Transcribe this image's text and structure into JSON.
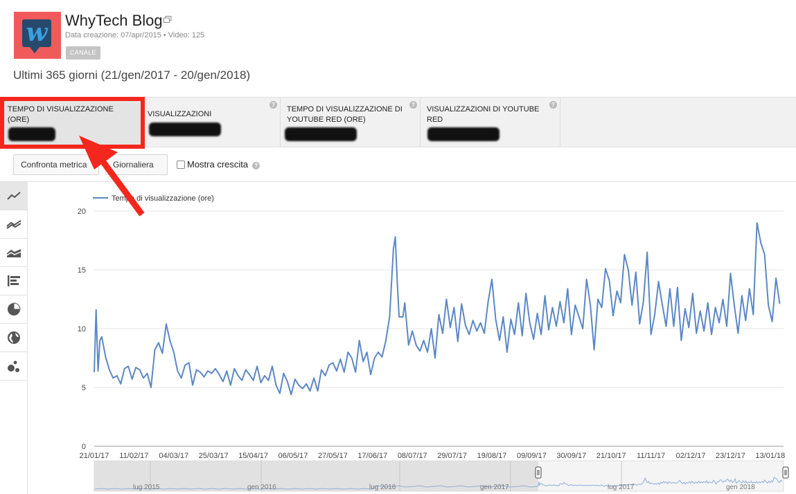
{
  "header": {
    "channel_name": "WhyTech Blog",
    "meta": "Data creazione: 07/apr/2015  •  Video: 125",
    "channel_button": "CANALE",
    "date_range": "Ultimi 365 giorni (21/gen/2017 - 20/gen/2018)"
  },
  "metrics": [
    {
      "label": "TEMPO DI VISUALIZZAZIONE (ORE)",
      "selected": true
    },
    {
      "label": "VISUALIZZAZIONI",
      "selected": false
    },
    {
      "label": "TEMPO DI VISUALIZZAZIONE DI YOUTUBE RED (ORE)",
      "selected": false
    },
    {
      "label": "VISUALIZZAZIONI DI YOUTUBE RED",
      "selected": false
    }
  ],
  "controls": {
    "compare_label": "Confronta metrica",
    "granularity_label": "Giornaliera",
    "growth_label": "Mostra crescita"
  },
  "sidebar_icons": [
    "line-chart-icon",
    "multi-line-chart-icon",
    "stacked-area-chart-icon",
    "bar-chart-icon",
    "pie-chart-icon",
    "globe-map-icon",
    "bubble-chart-icon"
  ],
  "colors": {
    "series": "#5b87c5",
    "highlight": "#f4271c"
  },
  "chart_data": {
    "type": "line",
    "title": "",
    "xlabel": "",
    "ylabel": "",
    "ylim": [
      0,
      20
    ],
    "yticks": [
      "0",
      "5",
      "10",
      "15",
      "20"
    ],
    "x_ticks": [
      "21/01/17",
      "11/02/17",
      "04/03/17",
      "25/03/17",
      "15/04/17",
      "06/05/17",
      "27/05/17",
      "17/06/17",
      "08/07/17",
      "29/07/17",
      "19/08/17",
      "09/09/17",
      "30/09/17",
      "21/10/17",
      "11/11/17",
      "02/12/17",
      "23/12/17",
      "13/01/18"
    ],
    "legend_position": "top-left",
    "series": [
      {
        "name": "Tempo di visualizzazione (ore)",
        "x_start": "2017-01-21",
        "x_end": "2018-01-20",
        "keypoints": [
          [
            0,
            6.3
          ],
          [
            1,
            11.6
          ],
          [
            2,
            6.4
          ],
          [
            3,
            9.0
          ],
          [
            4,
            9.3
          ],
          [
            6,
            7.6
          ],
          [
            8,
            6.5
          ],
          [
            10,
            5.8
          ],
          [
            12,
            6.0
          ],
          [
            14,
            5.3
          ],
          [
            16,
            6.6
          ],
          [
            18,
            6.8
          ],
          [
            20,
            5.7
          ],
          [
            22,
            6.7
          ],
          [
            24,
            6.5
          ],
          [
            26,
            5.8
          ],
          [
            28,
            6.2
          ],
          [
            30,
            5.0
          ],
          [
            32,
            8.2
          ],
          [
            34,
            8.8
          ],
          [
            36,
            7.9
          ],
          [
            38,
            10.4
          ],
          [
            40,
            9.0
          ],
          [
            42,
            8.0
          ],
          [
            44,
            6.4
          ],
          [
            46,
            5.8
          ],
          [
            48,
            6.9
          ],
          [
            50,
            7.1
          ],
          [
            52,
            5.2
          ],
          [
            54,
            6.5
          ],
          [
            56,
            6.3
          ],
          [
            58,
            5.9
          ],
          [
            60,
            6.4
          ],
          [
            62,
            6.2
          ],
          [
            64,
            6.6
          ],
          [
            66,
            6.1
          ],
          [
            68,
            5.5
          ],
          [
            70,
            6.4
          ],
          [
            72,
            5.2
          ],
          [
            74,
            6.6
          ],
          [
            76,
            6.0
          ],
          [
            78,
            5.6
          ],
          [
            80,
            6.5
          ],
          [
            82,
            6.1
          ],
          [
            84,
            5.6
          ],
          [
            86,
            6.8
          ],
          [
            88,
            5.4
          ],
          [
            90,
            6.0
          ],
          [
            92,
            5.6
          ],
          [
            94,
            6.8
          ],
          [
            96,
            5.2
          ],
          [
            98,
            4.5
          ],
          [
            100,
            6.2
          ],
          [
            102,
            5.5
          ],
          [
            104,
            4.4
          ],
          [
            106,
            5.7
          ],
          [
            108,
            5.2
          ],
          [
            110,
            4.9
          ],
          [
            112,
            5.3
          ],
          [
            114,
            4.7
          ],
          [
            116,
            5.8
          ],
          [
            118,
            4.7
          ],
          [
            120,
            6.5
          ],
          [
            122,
            6.0
          ],
          [
            124,
            6.9
          ],
          [
            126,
            7.1
          ],
          [
            128,
            6.4
          ],
          [
            130,
            7.4
          ],
          [
            132,
            6.3
          ],
          [
            134,
            8.0
          ],
          [
            136,
            7.5
          ],
          [
            138,
            6.3
          ],
          [
            140,
            9.0
          ],
          [
            142,
            7.2
          ],
          [
            144,
            8.0
          ],
          [
            146,
            6.1
          ],
          [
            148,
            7.5
          ],
          [
            150,
            8.0
          ],
          [
            152,
            7.6
          ],
          [
            154,
            9.0
          ],
          [
            156,
            11.0
          ],
          [
            158,
            16.8
          ],
          [
            159,
            17.8
          ],
          [
            160,
            14.0
          ],
          [
            161,
            11.0
          ],
          [
            163,
            11.0
          ],
          [
            164,
            12.2
          ],
          [
            166,
            8.6
          ],
          [
            168,
            9.8
          ],
          [
            170,
            8.6
          ],
          [
            172,
            8.1
          ],
          [
            174,
            9.0
          ],
          [
            176,
            8.0
          ],
          [
            178,
            10.0
          ],
          [
            180,
            7.5
          ],
          [
            182,
            11.2
          ],
          [
            184,
            9.6
          ],
          [
            186,
            12.5
          ],
          [
            188,
            10.1
          ],
          [
            190,
            11.8
          ],
          [
            192,
            8.9
          ],
          [
            194,
            12.1
          ],
          [
            196,
            10.3
          ],
          [
            198,
            9.5
          ],
          [
            200,
            10.7
          ],
          [
            202,
            9.8
          ],
          [
            204,
            10.5
          ],
          [
            206,
            9.6
          ],
          [
            208,
            12.3
          ],
          [
            210,
            14.2
          ],
          [
            212,
            10.8
          ],
          [
            214,
            9.0
          ],
          [
            216,
            11.0
          ],
          [
            218,
            8.0
          ],
          [
            220,
            10.8
          ],
          [
            222,
            9.5
          ],
          [
            224,
            12.2
          ],
          [
            226,
            9.4
          ],
          [
            228,
            13.0
          ],
          [
            230,
            10.5
          ],
          [
            232,
            9.1
          ],
          [
            234,
            11.3
          ],
          [
            236,
            9.5
          ],
          [
            238,
            12.8
          ],
          [
            240,
            9.9
          ],
          [
            242,
            11.8
          ],
          [
            244,
            10.2
          ],
          [
            246,
            12.3
          ],
          [
            248,
            10.5
          ],
          [
            250,
            13.4
          ],
          [
            252,
            9.5
          ],
          [
            254,
            12.0
          ],
          [
            256,
            11.0
          ],
          [
            258,
            10.0
          ],
          [
            260,
            14.2
          ],
          [
            262,
            12.0
          ],
          [
            264,
            8.2
          ],
          [
            266,
            12.5
          ],
          [
            268,
            11.8
          ],
          [
            270,
            15.1
          ],
          [
            272,
            14.1
          ],
          [
            274,
            11.1
          ],
          [
            276,
            13.2
          ],
          [
            278,
            12.2
          ],
          [
            280,
            16.3
          ],
          [
            282,
            15.0
          ],
          [
            284,
            12.0
          ],
          [
            286,
            14.8
          ],
          [
            288,
            10.4
          ],
          [
            290,
            12.3
          ],
          [
            292,
            16.5
          ],
          [
            294,
            9.5
          ],
          [
            296,
            11.2
          ],
          [
            298,
            14.0
          ],
          [
            300,
            12.0
          ],
          [
            302,
            10.2
          ],
          [
            304,
            13.4
          ],
          [
            306,
            10.2
          ],
          [
            308,
            13.5
          ],
          [
            310,
            9.0
          ],
          [
            312,
            11.7
          ],
          [
            314,
            10.1
          ],
          [
            316,
            13.0
          ],
          [
            318,
            9.6
          ],
          [
            320,
            11.5
          ],
          [
            322,
            9.8
          ],
          [
            324,
            12.2
          ],
          [
            326,
            9.5
          ],
          [
            328,
            11.8
          ],
          [
            330,
            10.5
          ],
          [
            332,
            12.5
          ],
          [
            334,
            10.2
          ],
          [
            336,
            14.7
          ],
          [
            338,
            12.0
          ],
          [
            340,
            9.6
          ],
          [
            342,
            12.8
          ],
          [
            344,
            10.7
          ],
          [
            346,
            13.4
          ],
          [
            348,
            11.2
          ],
          [
            350,
            19.0
          ],
          [
            352,
            17.3
          ],
          [
            354,
            16.3
          ],
          [
            356,
            12.0
          ],
          [
            358,
            10.6
          ],
          [
            360,
            14.3
          ],
          [
            362,
            12.1
          ]
        ]
      }
    ],
    "navigator_ticks": [
      "lug 2015",
      "gen 2016",
      "lug 2016",
      "gen 2017",
      "lug 2017",
      "gen 2018"
    ]
  }
}
